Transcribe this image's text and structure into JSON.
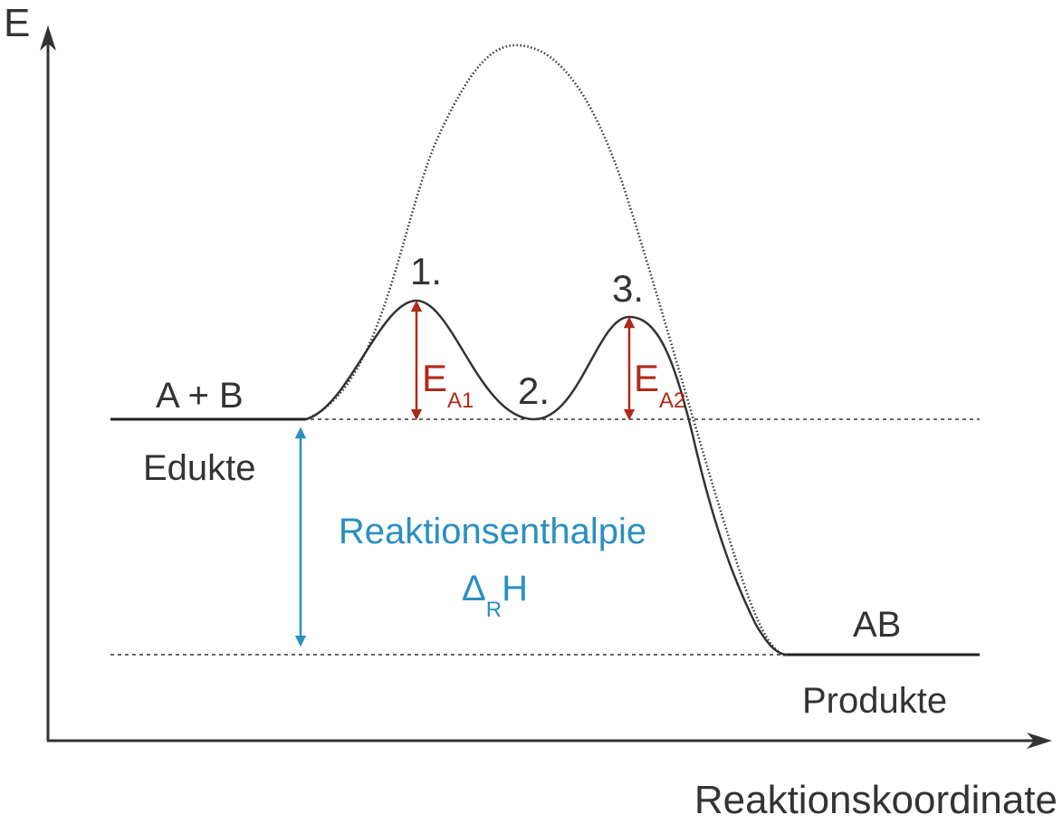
{
  "axes": {
    "y_label": "E",
    "x_label": "Reaktionskoordinate"
  },
  "levels": {
    "educts_formula": "A + B",
    "educts_name": "Edukte",
    "product_formula": "AB",
    "product_name": "Produkte"
  },
  "steps": {
    "step1": "1.",
    "step2": "2.",
    "step3": "3."
  },
  "activation": {
    "ea1_main": "E",
    "ea1_sub": "A1",
    "ea2_main": "E",
    "ea2_sub": "A2"
  },
  "enthalpy": {
    "title": "Reaktionsenthalpie",
    "symbol_main": "Δ",
    "symbol_sub": "R",
    "symbol_end": "H"
  },
  "colors": {
    "curve": "#333333",
    "activation_arrows": "#b02a1a",
    "enthalpy": "#2a8fc2",
    "axes": "#333333"
  }
}
